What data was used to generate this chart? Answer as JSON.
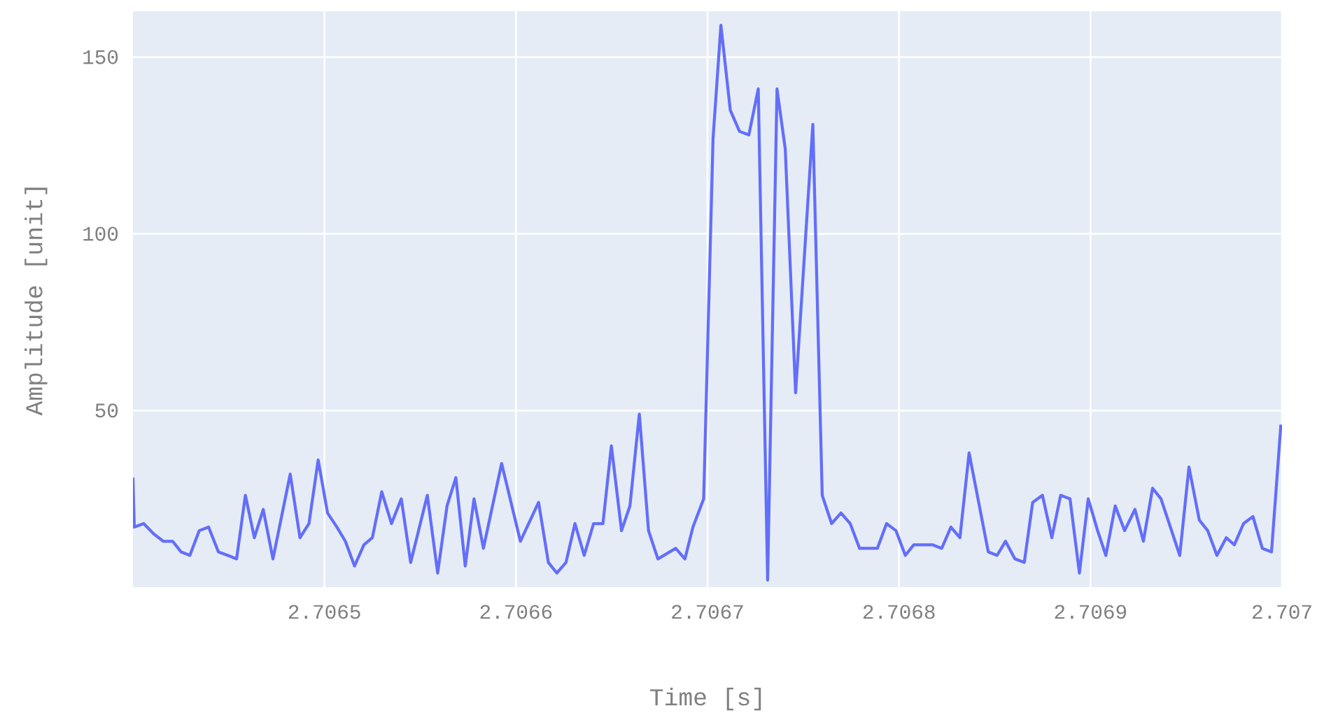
{
  "chart_data": {
    "type": "line",
    "xlabel": "Time [s]",
    "ylabel": "Amplitude [unit]",
    "color": "#636efa",
    "grid": true,
    "xlim": [
      2.7064,
      2.707
    ],
    "ylim": [
      0,
      163
    ],
    "xticks": [
      2.7065,
      2.7066,
      2.7067,
      2.7068,
      2.7069,
      2.707
    ],
    "yticks": [
      50,
      100,
      150
    ],
    "x": [
      2.7064,
      2.7064007,
      2.7064056,
      2.706411,
      2.7064158,
      2.7064207,
      2.7064251,
      2.7064297,
      2.7064346,
      2.7064395,
      2.7064446,
      2.7064495,
      2.7064541,
      2.7064587,
      2.7064634,
      2.706468,
      2.7064731,
      2.7064821,
      2.7064872,
      2.7064919,
      2.7064967,
      2.7065016,
      2.7065065,
      2.7065109,
      2.7065157,
      2.7065206,
      2.706525,
      2.7065299,
      2.706535,
      2.7065401,
      2.706545,
      2.7065537,
      2.7065591,
      2.706564,
      2.7065686,
      2.7065735,
      2.7065781,
      2.706583,
      2.7065925,
      2.7066023,
      2.7066118,
      2.7066169,
      2.7066213,
      2.7066261,
      2.7066308,
      2.7066356,
      2.7066405,
      2.7066454,
      2.7066498,
      2.7066551,
      2.7066595,
      2.7066644,
      2.7066692,
      2.7066741,
      2.7066834,
      2.7066882,
      2.7066924,
      2.706698,
      2.7067029,
      2.706707,
      2.7067119,
      2.7067167,
      2.7067216,
      2.7067265,
      2.7067314,
      2.7067363,
      2.7067406,
      2.706746,
      2.706755,
      2.7067599,
      2.7067648,
      2.7067697,
      2.7067745,
      2.7067794,
      2.7067887,
      2.7067935,
      2.7067984,
      2.7068033,
      2.7068077,
      2.7068174,
      2.7068223,
      2.7068271,
      2.7068318,
      2.7068366,
      2.7068466,
      2.7068512,
      2.7068556,
      2.7068605,
      2.7068654,
      2.7068698,
      2.7068749,
      2.7068798,
      2.7068844,
      2.7068893,
      2.7068942,
      2.7068988,
      2.7069037,
      2.706908,
      2.7069129,
      2.7069178,
      2.7069232,
      2.7069276,
      2.7069324,
      2.7069368,
      2.7069466,
      2.7069514,
      2.7069568,
      2.7069612,
      2.706966,
      2.7069709,
      2.7069751,
      2.7069799,
      2.7069848,
      2.7069897,
      2.7069945,
      2.7069994
    ],
    "values": [
      31,
      17,
      18,
      15,
      13,
      13,
      10,
      9,
      16,
      17,
      10,
      9,
      8,
      26,
      14,
      22,
      8,
      32,
      14,
      18,
      36,
      21,
      17,
      13,
      6,
      12,
      14,
      27,
      18,
      25,
      7,
      26,
      4,
      23,
      31,
      6,
      25,
      11,
      35,
      13,
      24,
      7,
      4,
      7,
      18,
      9,
      18,
      18,
      40,
      16,
      23,
      49,
      16,
      8,
      11,
      8,
      17,
      25,
      127,
      159,
      135,
      129,
      128,
      141,
      2,
      141,
      124,
      55,
      131,
      26,
      18,
      21,
      18,
      11,
      11,
      18,
      16,
      9,
      12,
      12,
      11,
      17,
      14,
      38,
      10,
      9,
      13,
      8,
      7,
      24,
      26,
      14,
      26,
      25,
      4,
      25,
      16,
      9,
      23,
      16,
      22,
      13,
      28,
      25,
      9,
      34,
      19,
      16,
      9,
      14,
      12,
      18,
      20,
      11,
      10,
      46
    ]
  }
}
